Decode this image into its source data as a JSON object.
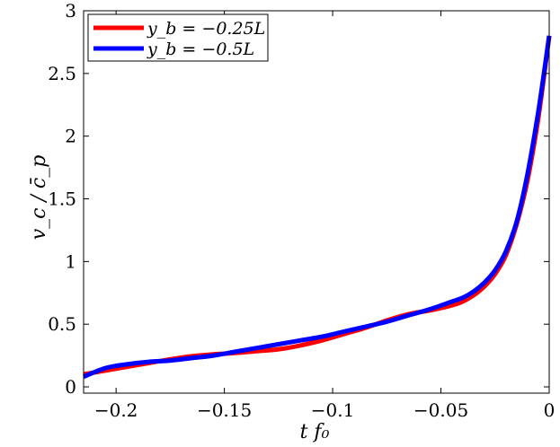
{
  "chart_data": {
    "type": "line",
    "xlabel": "t f₀",
    "ylabel": "v_c / c̄_p",
    "xlim": [
      -0.215,
      0
    ],
    "ylim": [
      -0.05,
      3
    ],
    "xticks": [
      -0.2,
      -0.15,
      -0.1,
      -0.05,
      0
    ],
    "xtick_labels": [
      "−0.2",
      "−0.15",
      "−0.1",
      "−0.05",
      "0"
    ],
    "yticks": [
      0,
      0.5,
      1,
      1.5,
      2,
      2.5,
      3
    ],
    "ytick_labels": [
      "0",
      "0.5",
      "1",
      "1.5",
      "2",
      "2.5",
      "3"
    ],
    "grid": false,
    "legend_position": "top-left",
    "series": [
      {
        "name": "y_b = −0.25L",
        "color": "#ff0000",
        "x": [
          -0.215,
          -0.205,
          -0.195,
          -0.185,
          -0.175,
          -0.165,
          -0.155,
          -0.145,
          -0.135,
          -0.125,
          -0.115,
          -0.105,
          -0.095,
          -0.085,
          -0.075,
          -0.065,
          -0.055,
          -0.045,
          -0.04,
          -0.035,
          -0.03,
          -0.025,
          -0.02,
          -0.015,
          -0.01,
          -0.005,
          0
        ],
        "y": [
          0.1,
          0.13,
          0.16,
          0.19,
          0.22,
          0.245,
          0.26,
          0.27,
          0.285,
          0.3,
          0.33,
          0.37,
          0.42,
          0.47,
          0.53,
          0.58,
          0.61,
          0.65,
          0.68,
          0.73,
          0.8,
          0.9,
          1.05,
          1.3,
          1.65,
          2.15,
          2.8
        ]
      },
      {
        "name": "y_b = −0.5L",
        "color": "#0000ff",
        "x": [
          -0.215,
          -0.205,
          -0.195,
          -0.185,
          -0.175,
          -0.165,
          -0.155,
          -0.145,
          -0.135,
          -0.125,
          -0.115,
          -0.105,
          -0.095,
          -0.085,
          -0.075,
          -0.065,
          -0.055,
          -0.045,
          -0.04,
          -0.035,
          -0.03,
          -0.025,
          -0.02,
          -0.015,
          -0.01,
          -0.005,
          0
        ],
        "y": [
          0.08,
          0.15,
          0.18,
          0.2,
          0.21,
          0.23,
          0.25,
          0.28,
          0.31,
          0.34,
          0.37,
          0.4,
          0.44,
          0.48,
          0.52,
          0.57,
          0.62,
          0.68,
          0.71,
          0.76,
          0.83,
          0.93,
          1.08,
          1.32,
          1.7,
          2.2,
          2.8
        ]
      }
    ]
  }
}
